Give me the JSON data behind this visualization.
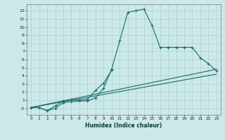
{
  "xlabel": "Humidex (Indice chaleur)",
  "xlim": [
    -0.5,
    23.5
  ],
  "ylim": [
    -0.8,
    12.8
  ],
  "bg_color": "#cce8e8",
  "line_color": "#1a6b6b",
  "grid_color": "#aad0d0",
  "line1_x": [
    0,
    1,
    2,
    3,
    4,
    5,
    6,
    7,
    8,
    9,
    10,
    11,
    12,
    13,
    14,
    15,
    16,
    17,
    18,
    19,
    20,
    21,
    22,
    23
  ],
  "line1_y": [
    0.1,
    0.1,
    -0.3,
    0.0,
    0.7,
    0.8,
    0.9,
    0.9,
    1.3,
    2.5,
    4.8,
    8.3,
    11.8,
    12.0,
    12.2,
    10.2,
    7.5,
    7.5,
    7.5,
    7.5,
    7.5,
    6.2,
    5.5,
    4.6
  ],
  "line2_x": [
    0,
    1,
    2,
    3,
    4,
    5,
    6,
    7,
    8,
    9,
    10
  ],
  "line2_y": [
    0.1,
    0.1,
    -0.3,
    0.3,
    0.9,
    1.0,
    1.0,
    1.1,
    2.2,
    3.1,
    4.7
  ],
  "line3_x": [
    0,
    23
  ],
  "line3_y": [
    0.1,
    4.8
  ],
  "line4_x": [
    0,
    23
  ],
  "line4_y": [
    0.1,
    4.2
  ],
  "xtick_labels": [
    "0",
    "1",
    "2",
    "3",
    "4",
    "5",
    "6",
    "7",
    "8",
    "9",
    "10",
    "11",
    "12",
    "13",
    "14",
    "15",
    "16",
    "17",
    "18",
    "19",
    "20",
    "21",
    "22",
    "23"
  ],
  "ytick_labels": [
    "-0",
    "1",
    "2",
    "3",
    "4",
    "5",
    "6",
    "7",
    "8",
    "9",
    "10",
    "11",
    "12"
  ]
}
